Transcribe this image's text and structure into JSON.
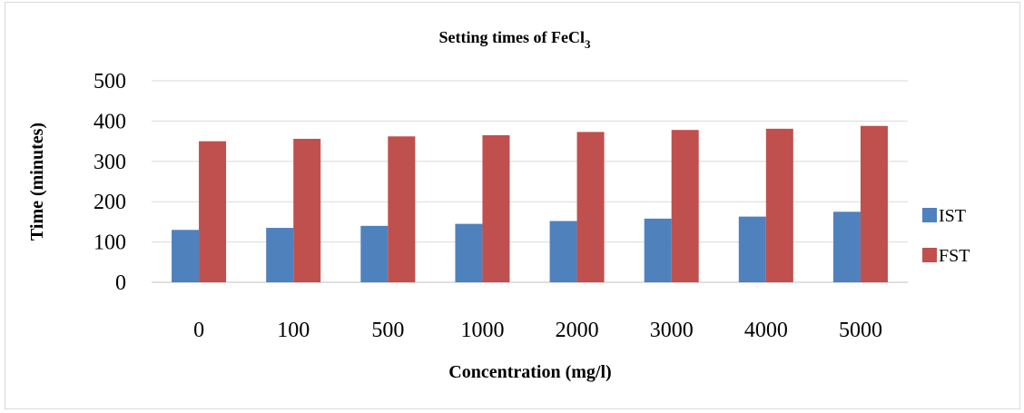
{
  "chart_data": {
    "type": "bar",
    "title": "Setting times of FeCl",
    "title_subscript": "3",
    "xlabel": "Concentration (mg/l)",
    "ylabel": "Time (minutes)",
    "categories": [
      "0",
      "100",
      "500",
      "1000",
      "2000",
      "3000",
      "4000",
      "5000"
    ],
    "series": [
      {
        "name": "IST",
        "color": "#4f81bd",
        "values": [
          130,
          135,
          140,
          145,
          152,
          158,
          163,
          175
        ]
      },
      {
        "name": "FST",
        "color": "#c0504d",
        "values": [
          350,
          356,
          362,
          365,
          373,
          378,
          381,
          388
        ]
      }
    ],
    "ylim": [
      0,
      500
    ],
    "yticks": [
      "0",
      "100",
      "200",
      "300",
      "400",
      "500"
    ],
    "grid": true,
    "legend_position": "right"
  }
}
